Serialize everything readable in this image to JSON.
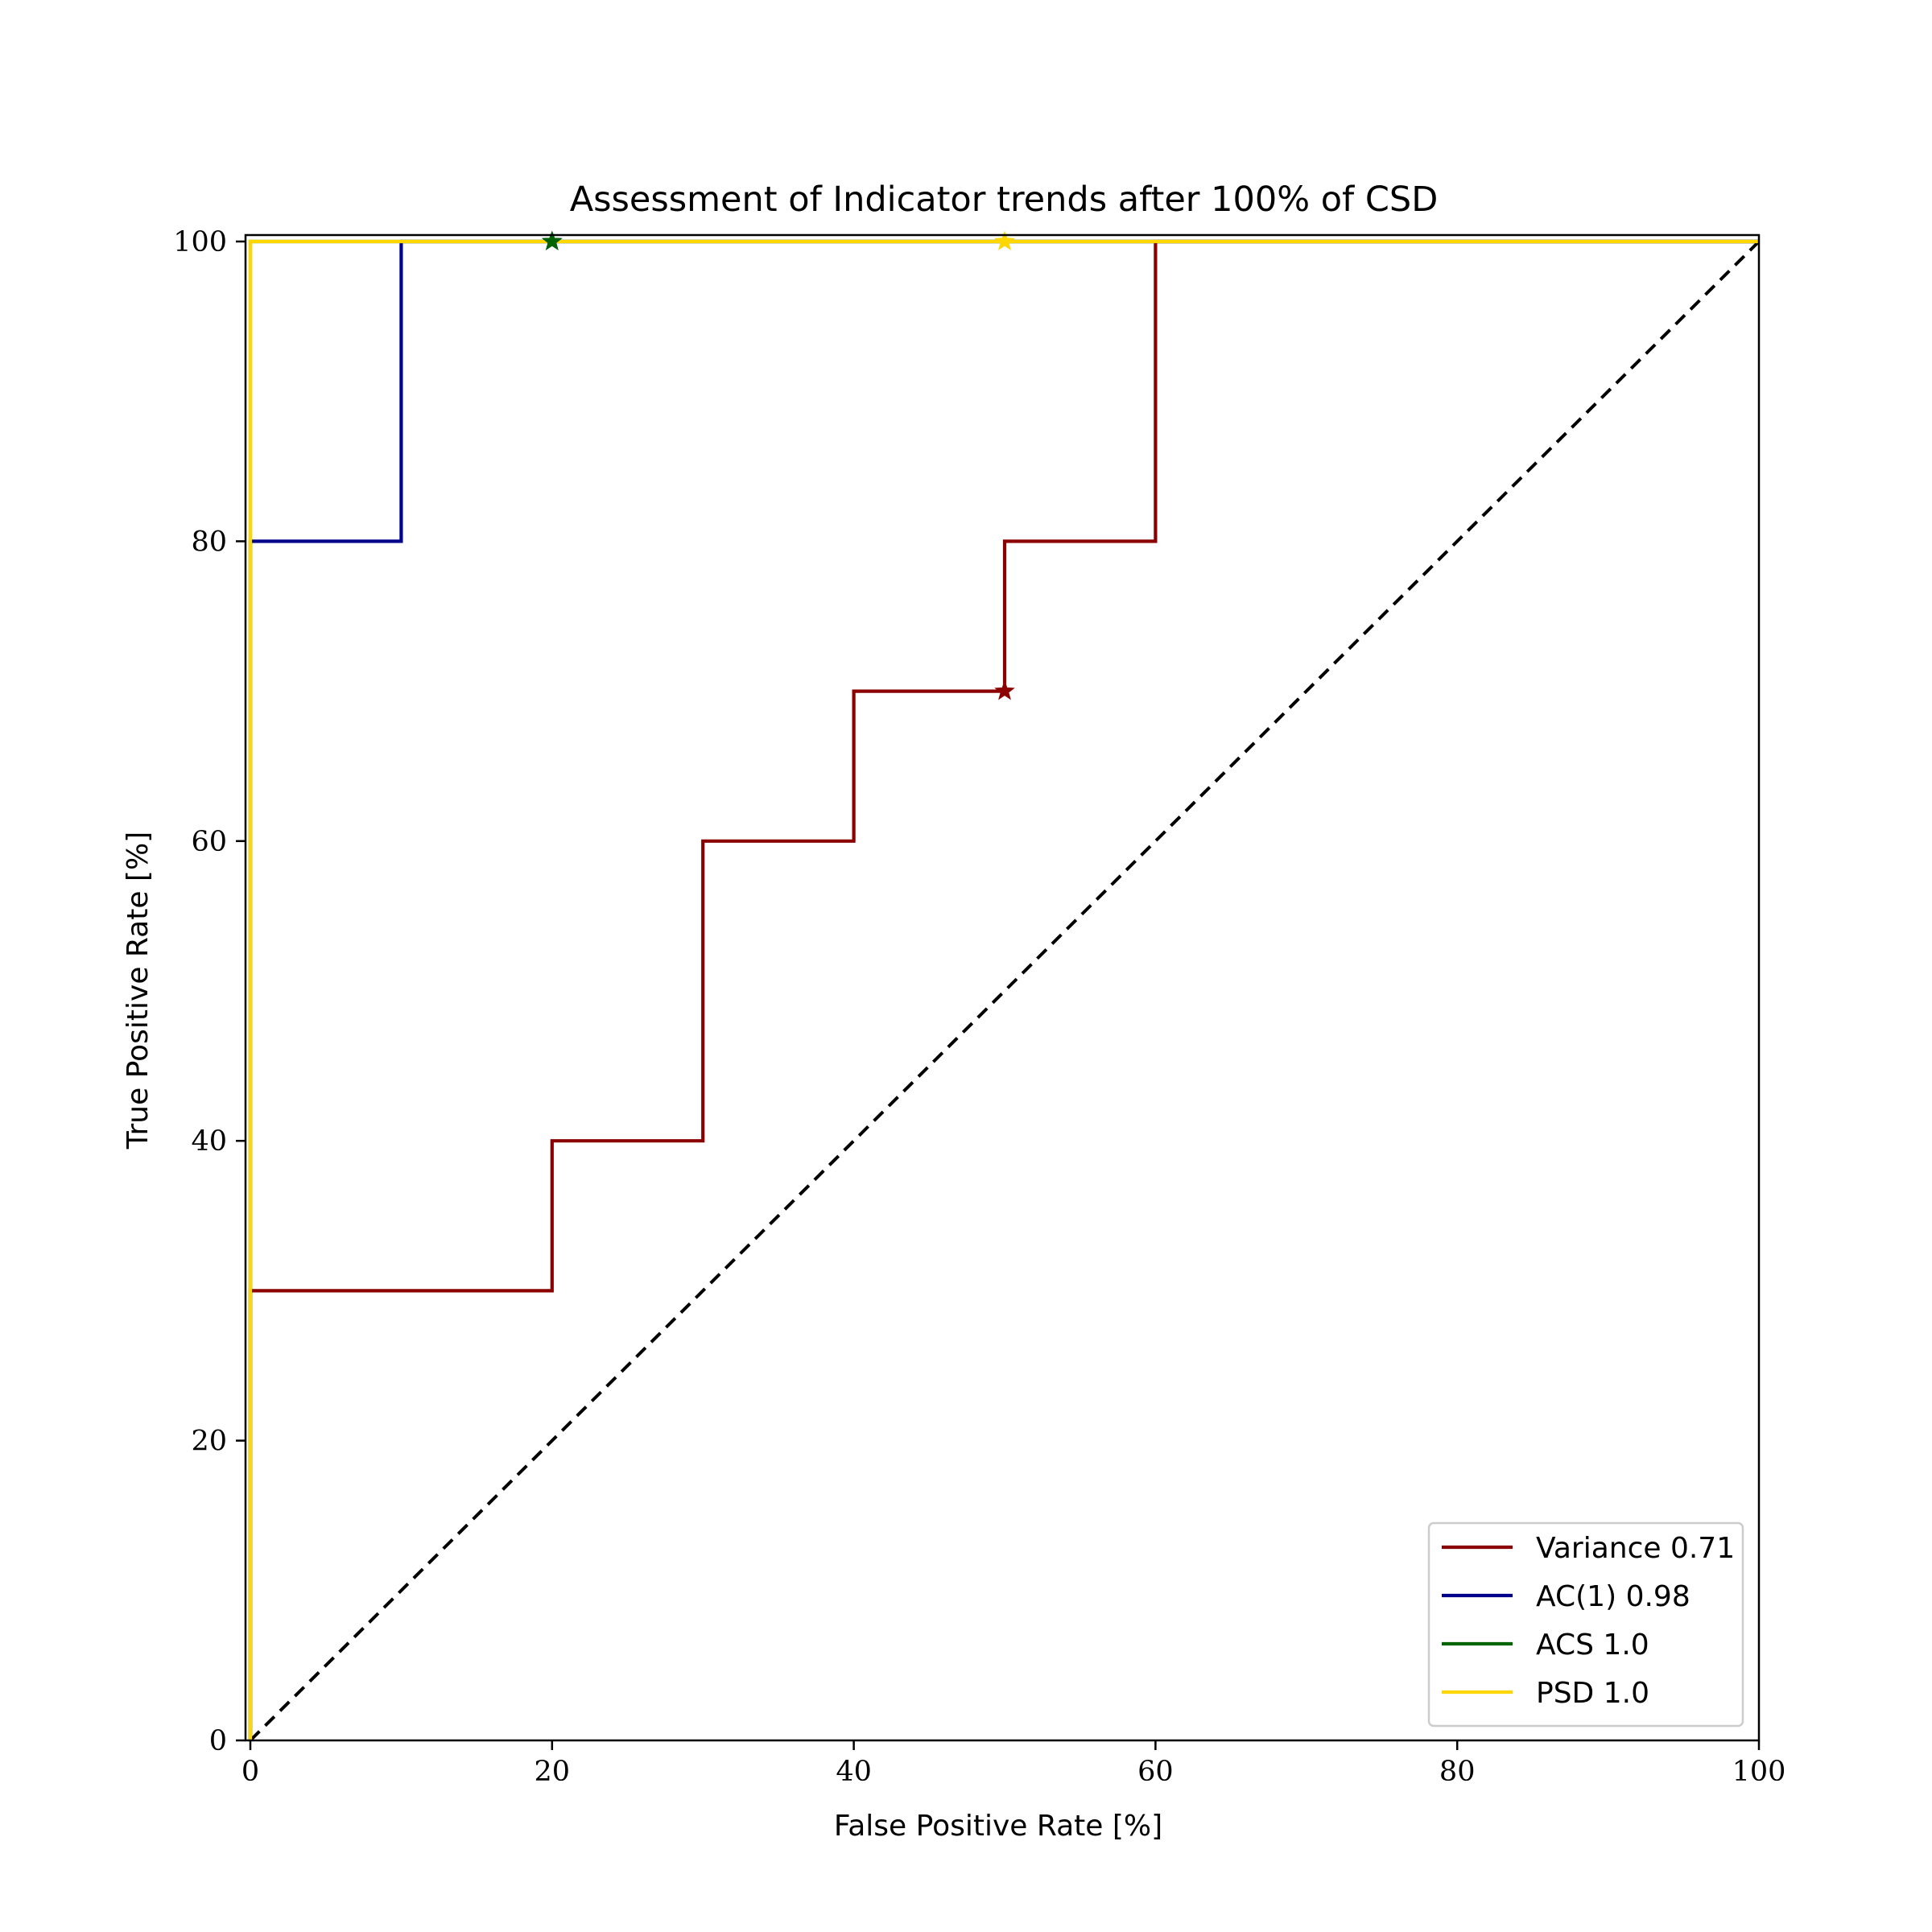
{
  "chart_data": {
    "type": "line",
    "title": "Assessment of Indicator trends after 100% of CSD",
    "xlabel": "False Positive Rate [%]",
    "ylabel": "True Positive Rate [%]",
    "xlim": [
      0,
      100
    ],
    "ylim": [
      0,
      100
    ],
    "xticks": [
      "0",
      "20",
      "40",
      "60",
      "80",
      "100"
    ],
    "yticks": [
      "0",
      "20",
      "40",
      "60",
      "80",
      "100"
    ],
    "grid": false,
    "legend_position": "lower-right",
    "series": [
      {
        "name": "Variance 0.71",
        "color": "#8b0000",
        "x": [
          0,
          0,
          20,
          20,
          30,
          30,
          40,
          40,
          50,
          50,
          60,
          60,
          100
        ],
        "y": [
          0,
          30,
          30,
          40,
          40,
          60,
          60,
          70,
          70,
          80,
          80,
          100,
          100
        ],
        "marker": {
          "x": 50,
          "y": 70
        }
      },
      {
        "name": "AC(1) 0.98",
        "color": "#00008b",
        "x": [
          0,
          0,
          10,
          10,
          100
        ],
        "y": [
          0,
          80,
          80,
          100,
          100
        ],
        "marker": {
          "x": 20,
          "y": 100
        }
      },
      {
        "name": "ACS 1.0",
        "color": "#006400",
        "x": [
          0,
          0,
          100
        ],
        "y": [
          0,
          100,
          100
        ],
        "marker": {
          "x": 20,
          "y": 100
        }
      },
      {
        "name": "PSD 1.0",
        "color": "#ffd700",
        "x": [
          0,
          0,
          100
        ],
        "y": [
          0,
          100,
          100
        ],
        "marker": {
          "x": 50,
          "y": 100
        }
      }
    ],
    "reference_line": {
      "x": [
        0,
        100
      ],
      "y": [
        0,
        100
      ],
      "color": "#000000",
      "style": "dashed"
    }
  }
}
